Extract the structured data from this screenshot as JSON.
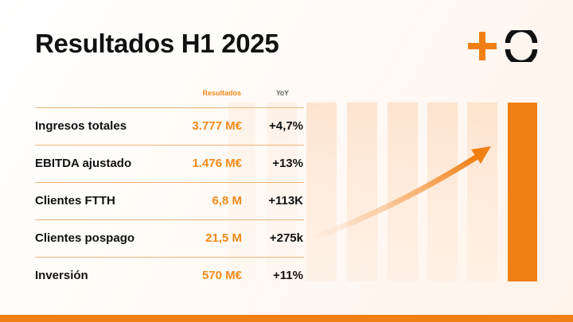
{
  "slide": {
    "title": "Resultados H1 2025",
    "column_results": "Resultados",
    "column_yoy": "YoY",
    "rows": [
      {
        "label": "Ingresos totales",
        "value": "3.777 M€",
        "yoy": "+4,7%"
      },
      {
        "label": "EBITDA ajustado",
        "value": "1.476 M€",
        "yoy": "+13%"
      },
      {
        "label": "Clientes FTTH",
        "value": "6,8 M",
        "yoy": "+113K"
      },
      {
        "label": "Clientes pospago",
        "value": "21,5 M",
        "yoy": "+275k"
      },
      {
        "label": "Inversión",
        "value": "570 M€",
        "yoy": "+11%"
      }
    ]
  },
  "colors": {
    "accent": "#f07f14",
    "accent_light": "#fbd9bd",
    "text": "#111111"
  },
  "icons": {
    "logo": "plus-circle-logo",
    "trend": "arrow-up-right-icon"
  }
}
